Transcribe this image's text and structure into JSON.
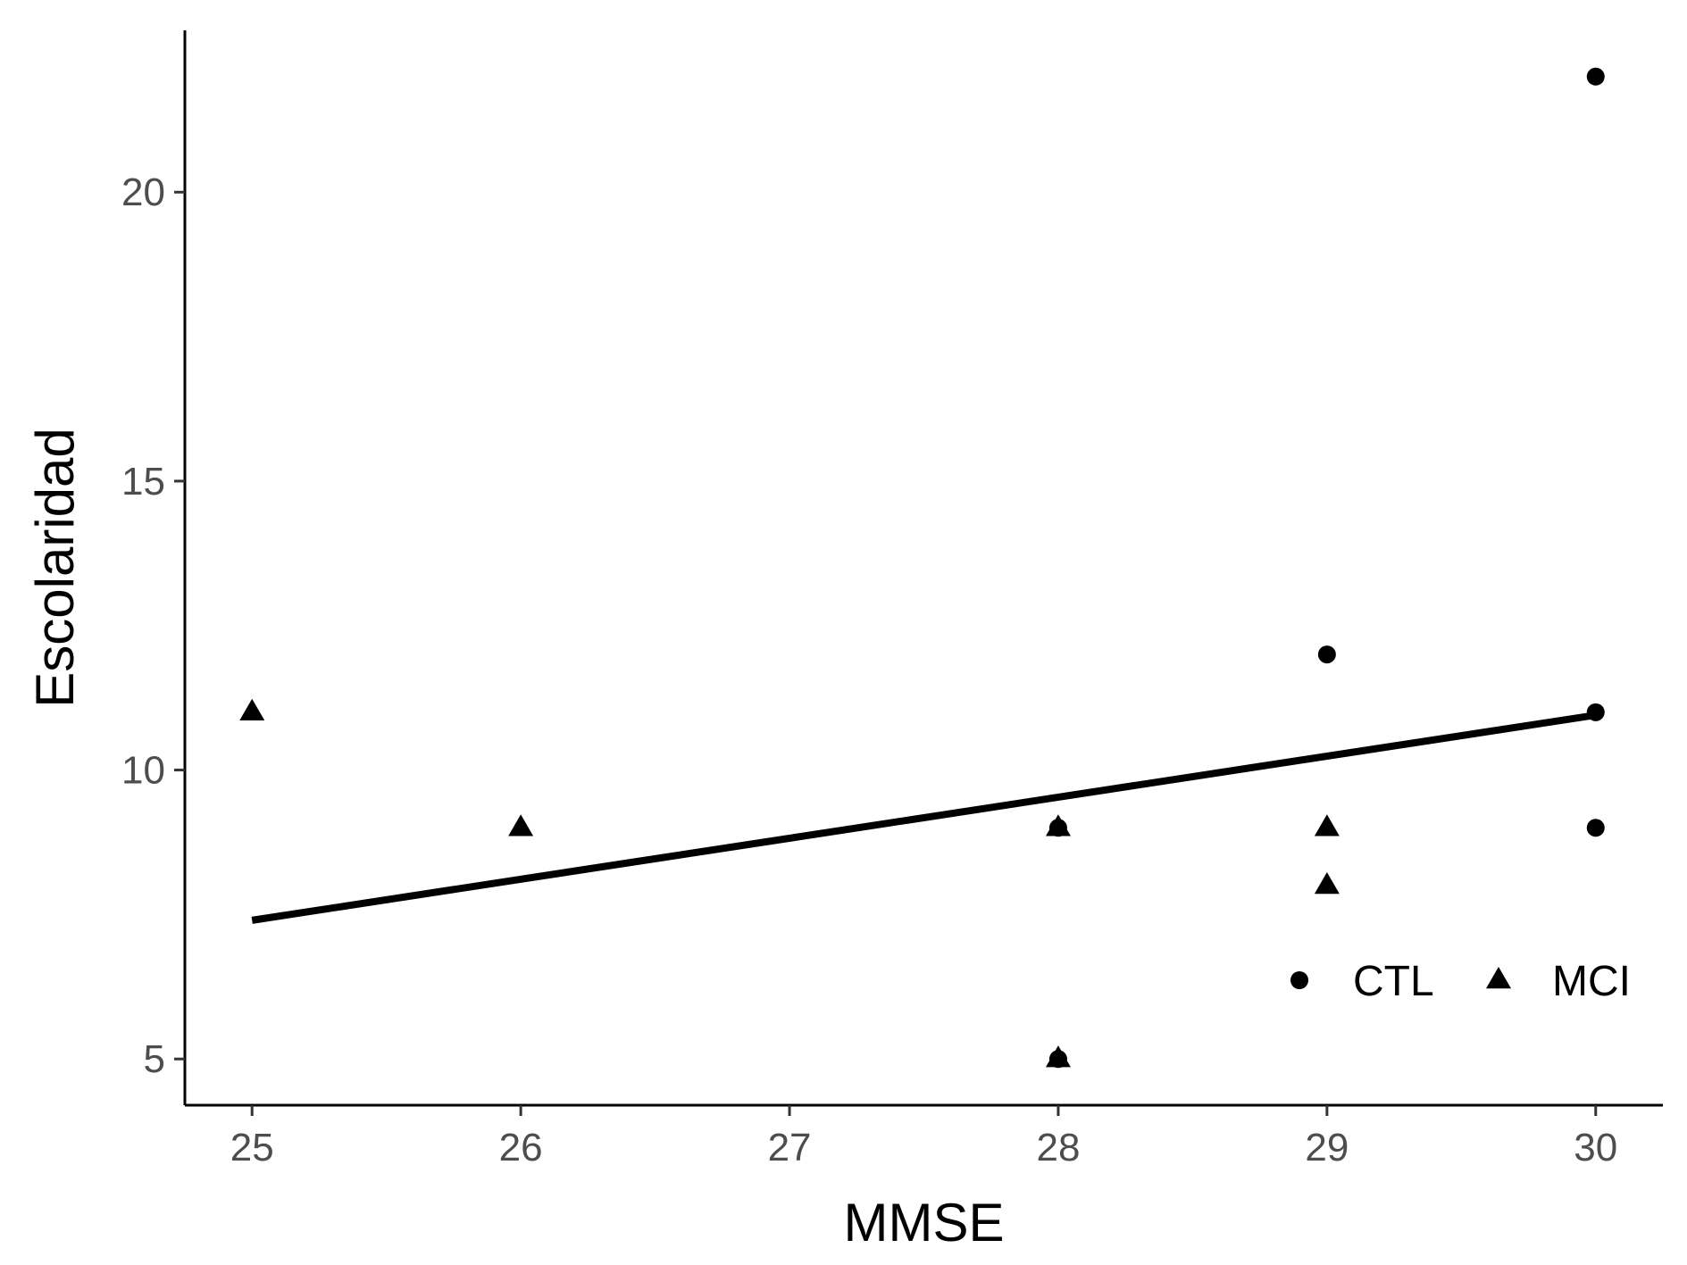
{
  "chart_data": {
    "type": "scatter",
    "xlabel": "MMSE",
    "ylabel": "Escolaridad",
    "xlim": [
      24.75,
      30.25
    ],
    "ylim": [
      4.2,
      22.8
    ],
    "x_ticks": [
      25,
      26,
      27,
      28,
      29,
      30
    ],
    "y_ticks": [
      5,
      10,
      15,
      20
    ],
    "grid": false,
    "legend_position": "bottom-right",
    "series": [
      {
        "name": "CTL",
        "marker": "circle",
        "color": "#000000",
        "points": [
          [
            28,
            9
          ],
          [
            28,
            5
          ],
          [
            29,
            12
          ],
          [
            30,
            22
          ],
          [
            30,
            11
          ],
          [
            30,
            9
          ]
        ]
      },
      {
        "name": "MCI",
        "marker": "triangle",
        "color": "#000000",
        "points": [
          [
            25,
            11
          ],
          [
            26,
            9
          ],
          [
            28,
            9
          ],
          [
            28,
            5
          ],
          [
            29,
            9
          ],
          [
            29,
            8
          ]
        ]
      }
    ],
    "trend_line": {
      "x": [
        25,
        30
      ],
      "y": [
        7.4,
        10.95
      ],
      "color": "#000000"
    }
  }
}
